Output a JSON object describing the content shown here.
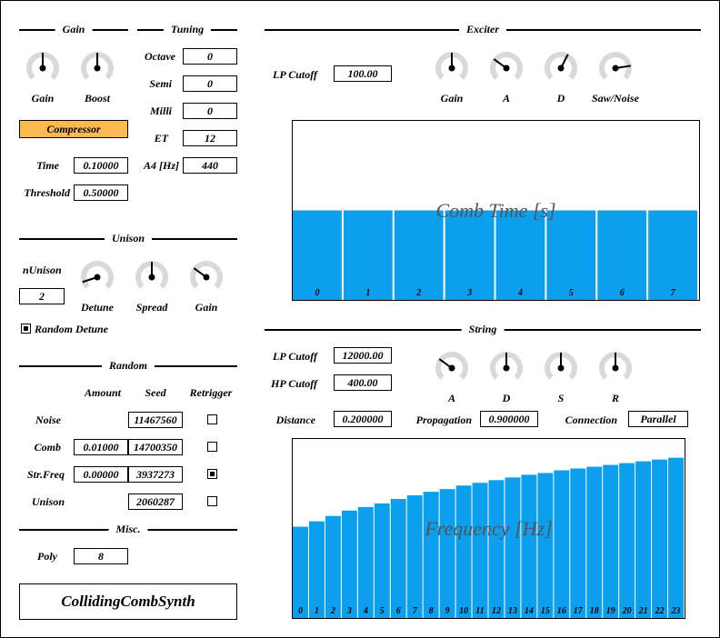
{
  "sections": {
    "gain": "Gain",
    "tuning": "Tuning",
    "exciter": "Exciter",
    "unison": "Unison",
    "random": "Random",
    "misc": "Misc.",
    "string": "String"
  },
  "gain_section": {
    "knobs": [
      {
        "label": "Gain",
        "value": 0.5
      },
      {
        "label": "Boost",
        "value": 0.5
      }
    ],
    "compressor_button": "Compressor",
    "time_label": "Time",
    "time_value": "0.10000",
    "threshold_label": "Threshold",
    "threshold_value": "0.50000"
  },
  "tuning": {
    "octave_label": "Octave",
    "octave_value": "0",
    "semi_label": "Semi",
    "semi_value": "0",
    "milli_label": "Milli",
    "milli_value": "0",
    "et_label": "ET",
    "et_value": "12",
    "a4_label": "A4 [Hz]",
    "a4_value": "440"
  },
  "unison": {
    "n_label": "nUnison",
    "n_value": "2",
    "knobs": [
      {
        "label": "Detune",
        "value": 0.1
      },
      {
        "label": "Spread",
        "value": 0.5
      },
      {
        "label": "Gain",
        "value": 0.3
      }
    ],
    "random_detune_label": "Random Detune",
    "random_detune_checked": true
  },
  "random": {
    "headers": {
      "amount": "Amount",
      "seed": "Seed",
      "retrigger": "Retrigger"
    },
    "rows": [
      {
        "label": "Noise",
        "amount": "",
        "seed": "11467560",
        "retrigger": false
      },
      {
        "label": "Comb",
        "amount": "0.01000",
        "seed": "14700350",
        "retrigger": false
      },
      {
        "label": "Str.Freq",
        "amount": "0.00000",
        "seed": "3937273",
        "retrigger": true
      },
      {
        "label": "Unison",
        "amount": "",
        "seed": "2060287",
        "retrigger": false
      }
    ]
  },
  "misc": {
    "poly_label": "Poly",
    "poly_value": "8"
  },
  "plugin_name": "CollidingCombSynth",
  "exciter": {
    "lp_cutoff_label": "LP Cutoff",
    "lp_cutoff_value": "100.00",
    "knobs": [
      {
        "label": "Gain",
        "value": 0.5
      },
      {
        "label": "A",
        "value": 0.3
      },
      {
        "label": "D",
        "value": 0.6
      },
      {
        "label": "Saw/Noise",
        "value": 0.8
      }
    ],
    "comb_title": "Comb Time [s]"
  },
  "string": {
    "lp_cutoff_label": "LP Cutoff",
    "lp_cutoff_value": "12000.00",
    "hp_cutoff_label": "HP Cutoff",
    "hp_cutoff_value": "400.00",
    "knobs": [
      {
        "label": "A",
        "value": 0.3
      },
      {
        "label": "D",
        "value": 0.5
      },
      {
        "label": "S",
        "value": 0.5
      },
      {
        "label": "R",
        "value": 0.5
      }
    ],
    "distance_label": "Distance",
    "distance_value": "0.200000",
    "propagation_label": "Propagation",
    "propagation_value": "0.900000",
    "connection_label": "Connection",
    "connection_value": "Parallel",
    "freq_title": "Frequency [Hz]"
  },
  "colors": {
    "bar": "#0b9fed",
    "compressor": "#fdbb4f",
    "knob_track": "#d9d9d9"
  },
  "chart_data": [
    {
      "type": "bar",
      "title": "Comb Time [s]",
      "categories": [
        "0",
        "1",
        "2",
        "3",
        "4",
        "5",
        "6",
        "7"
      ],
      "values": [
        0.5,
        0.5,
        0.5,
        0.5,
        0.5,
        0.5,
        0.5,
        0.5
      ],
      "ylim": [
        0,
        1
      ]
    },
    {
      "type": "bar",
      "title": "Frequency [Hz]",
      "categories": [
        "0",
        "1",
        "2",
        "3",
        "4",
        "5",
        "6",
        "7",
        "8",
        "9",
        "10",
        "11",
        "12",
        "13",
        "14",
        "15",
        "16",
        "17",
        "18",
        "19",
        "20",
        "21",
        "22",
        "23"
      ],
      "values": [
        0.51,
        0.54,
        0.57,
        0.6,
        0.62,
        0.64,
        0.665,
        0.685,
        0.705,
        0.72,
        0.74,
        0.755,
        0.77,
        0.785,
        0.8,
        0.81,
        0.825,
        0.835,
        0.845,
        0.855,
        0.865,
        0.875,
        0.885,
        0.895
      ],
      "ylim": [
        0,
        1
      ]
    }
  ]
}
